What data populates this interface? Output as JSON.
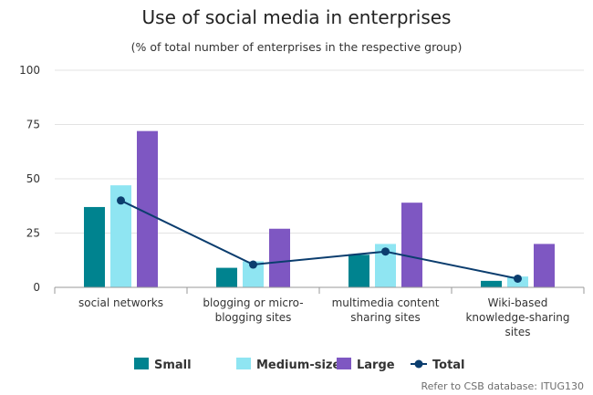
{
  "chart_data": {
    "type": "bar",
    "title": "Use of social media in enterprises",
    "subtitle": "(% of total number of enterprises in the respective group)",
    "categories": [
      [
        "social networks"
      ],
      [
        "blogging or micro-",
        "blogging sites"
      ],
      [
        "multimedia content",
        "sharing sites"
      ],
      [
        "Wiki-based",
        "knowledge-sharing",
        "sites"
      ]
    ],
    "y_ticks": [
      "0",
      "25",
      "50",
      "75",
      "100"
    ],
    "ylim": [
      0,
      100
    ],
    "series": [
      {
        "name": "Small",
        "type": "bar",
        "color": "#00838f",
        "values": [
          37,
          9,
          15,
          3
        ]
      },
      {
        "name": "Medium-sized",
        "type": "bar",
        "color": "#8fe5f2",
        "values": [
          47,
          12,
          20,
          5
        ]
      },
      {
        "name": "Large",
        "type": "bar",
        "color": "#7e57c2",
        "values": [
          72,
          27,
          39,
          20
        ]
      },
      {
        "name": "Total",
        "type": "line",
        "color": "#0b3d6e",
        "values": [
          40,
          10.5,
          16.5,
          4
        ]
      }
    ],
    "grid": true,
    "legend": "bottom",
    "source": "Refer to CSB database: ITUG130"
  }
}
